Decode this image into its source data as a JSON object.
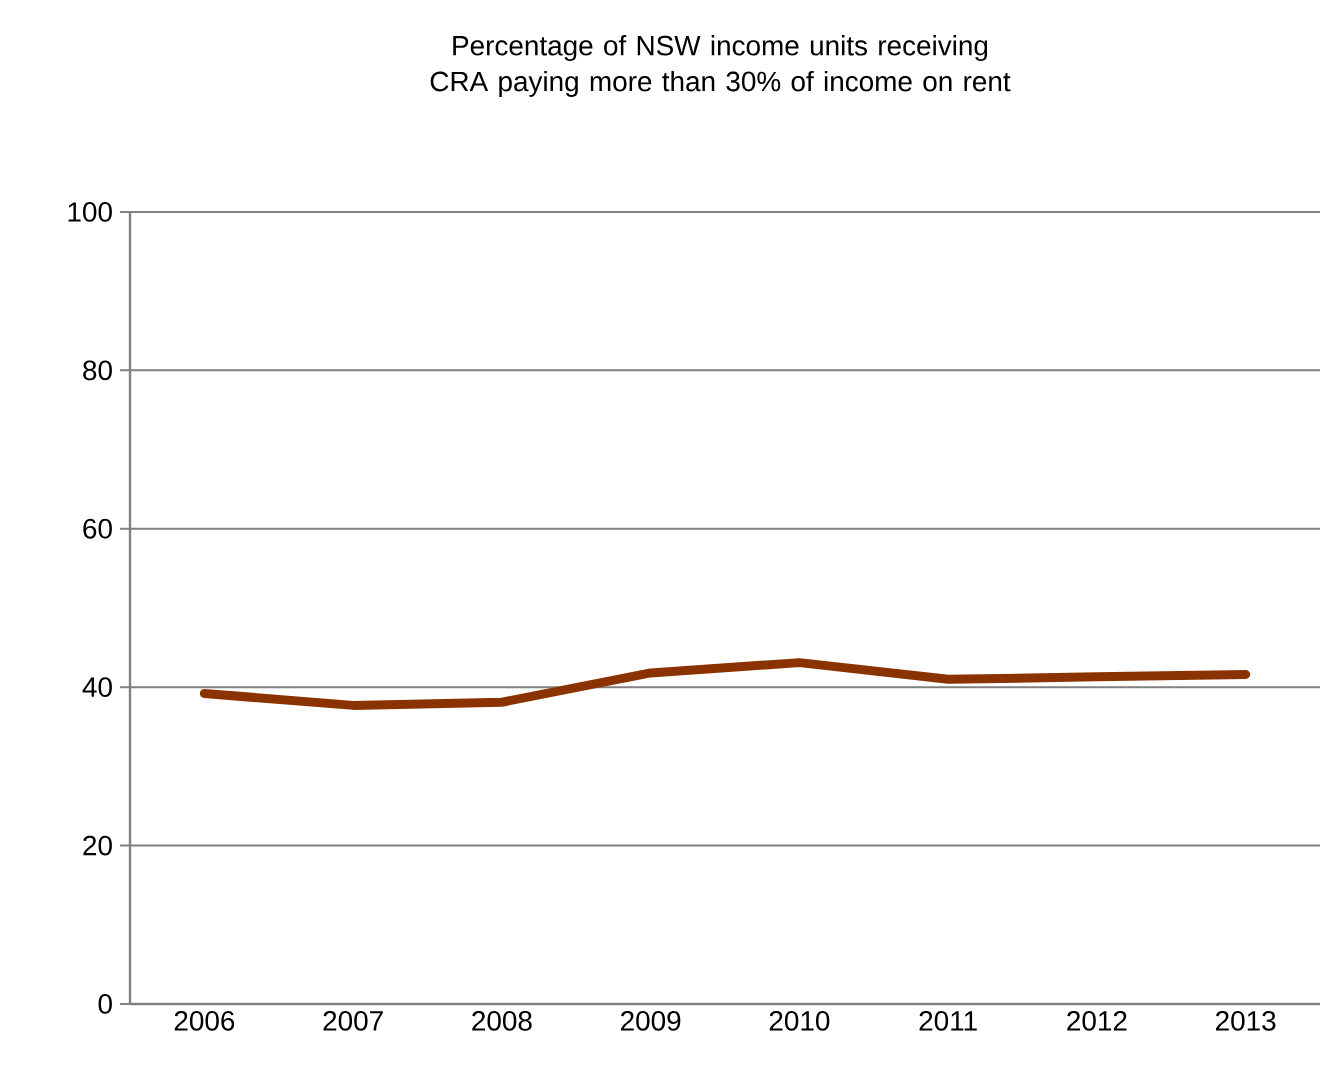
{
  "chart_data": {
    "type": "line",
    "title": "Percentage of NSW income units receiving CRA paying more than 30% of income on rent",
    "categories": [
      "2006",
      "2007",
      "2008",
      "2009",
      "2010",
      "2011",
      "2012",
      "2013"
    ],
    "series": [
      {
        "color": "#8b3300",
        "values": [
          39.2,
          37.7,
          38.1,
          41.8,
          43.1,
          41.0,
          41.3,
          41.6
        ]
      }
    ],
    "ylim": [
      0,
      100
    ],
    "yticks": [
      0,
      20,
      40,
      60,
      80,
      100
    ],
    "grid": "y",
    "legend": false,
    "marker": "none",
    "line_style": "solid"
  }
}
